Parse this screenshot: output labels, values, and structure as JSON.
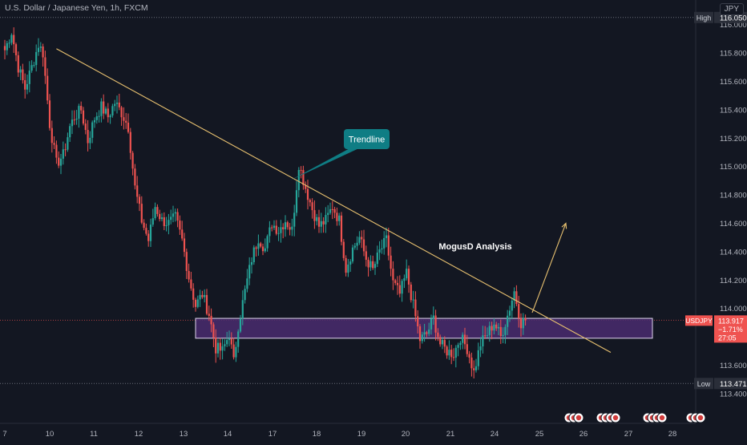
{
  "header": {
    "symbol_title": "U.S. Dollar / Japanese Yen, 1h, FXCM",
    "currency": "JPY"
  },
  "colors": {
    "background": "#131722",
    "up": "#26a69a",
    "down": "#ef5350",
    "trendline": "#e8c170",
    "zone_fill": "#4a2c6e",
    "callout": "#0f7d84",
    "label_bg": "#2a2e39",
    "price_tag": "#ef5350"
  },
  "chart_data": {
    "type": "candlestick",
    "title": "U.S. Dollar / Japanese Yen, 1h, FXCM",
    "ylim": [
      113.3,
      116.15
    ],
    "y_ticks": [
      "116.000",
      "115.800",
      "115.600",
      "115.400",
      "115.200",
      "115.000",
      "114.800",
      "114.600",
      "114.400",
      "114.200",
      "114.000",
      "113.600",
      "113.400"
    ],
    "x_ticks": [
      "7",
      "10",
      "11",
      "12",
      "13",
      "14",
      "17",
      "18",
      "19",
      "20",
      "21",
      "24",
      "25",
      "26",
      "27",
      "28"
    ],
    "high": {
      "label": "High",
      "value": "116.050"
    },
    "low": {
      "label": "Low",
      "value": "113.471"
    },
    "current": {
      "symbol": "USDJPY",
      "price": "113.917",
      "change": "−1.71%",
      "countdown": "27:05"
    },
    "annotations": {
      "trendline_label": "Trendline",
      "analysis_text": "MogusD Analysis",
      "support_zone": [
        113.79,
        113.93
      ]
    },
    "path_points": [
      [
        0,
        115.82
      ],
      [
        3,
        115.95
      ],
      [
        6,
        115.7
      ],
      [
        9,
        115.55
      ],
      [
        12,
        115.7
      ],
      [
        15,
        115.86
      ],
      [
        17,
        115.8
      ],
      [
        20,
        115.3
      ],
      [
        23,
        115.02
      ],
      [
        26,
        115.08
      ],
      [
        29,
        115.28
      ],
      [
        31,
        115.35
      ],
      [
        34,
        115.4
      ],
      [
        37,
        115.18
      ],
      [
        40,
        115.34
      ],
      [
        43,
        115.42
      ],
      [
        46,
        115.35
      ],
      [
        49,
        115.45
      ],
      [
        52,
        115.38
      ],
      [
        55,
        115.28
      ],
      [
        58,
        114.85
      ],
      [
        61,
        114.62
      ],
      [
        64,
        114.48
      ],
      [
        67,
        114.72
      ],
      [
        70,
        114.62
      ],
      [
        73,
        114.6
      ],
      [
        76,
        114.64
      ],
      [
        79,
        114.48
      ],
      [
        82,
        114.22
      ],
      [
        85,
        114.02
      ],
      [
        88,
        114.1
      ],
      [
        91,
        113.96
      ],
      [
        94,
        113.72
      ],
      [
        97,
        113.7
      ],
      [
        100,
        113.82
      ],
      [
        102,
        113.62
      ],
      [
        104,
        113.88
      ],
      [
        107,
        114.12
      ],
      [
        110,
        114.35
      ],
      [
        113,
        114.5
      ],
      [
        116,
        114.42
      ],
      [
        119,
        114.6
      ],
      [
        122,
        114.55
      ],
      [
        125,
        114.62
      ],
      [
        128,
        114.55
      ],
      [
        131,
        115.02
      ],
      [
        134,
        114.85
      ],
      [
        137,
        114.7
      ],
      [
        140,
        114.58
      ],
      [
        143,
        114.62
      ],
      [
        146,
        114.72
      ],
      [
        149,
        114.62
      ],
      [
        152,
        114.28
      ],
      [
        155,
        114.42
      ],
      [
        158,
        114.5
      ],
      [
        161,
        114.35
      ],
      [
        164,
        114.27
      ],
      [
        167,
        114.4
      ],
      [
        170,
        114.48
      ],
      [
        173,
        114.18
      ],
      [
        176,
        114.1
      ],
      [
        179,
        114.25
      ],
      [
        182,
        114.02
      ],
      [
        185,
        113.78
      ],
      [
        188,
        113.82
      ],
      [
        191,
        113.93
      ],
      [
        194,
        113.75
      ],
      [
        197,
        113.7
      ],
      [
        200,
        113.68
      ],
      [
        203,
        113.8
      ],
      [
        206,
        113.72
      ],
      [
        209,
        113.55
      ],
      [
        212,
        113.75
      ],
      [
        215,
        113.82
      ],
      [
        218,
        113.9
      ],
      [
        221,
        113.8
      ],
      [
        224,
        113.95
      ],
      [
        227,
        114.12
      ],
      [
        230,
        113.9
      ],
      [
        232,
        113.92
      ]
    ],
    "timing": {
      "total_bars": 270,
      "x_tick_index": [
        0,
        20,
        39,
        58,
        77,
        96,
        115,
        134,
        153,
        172,
        191,
        210,
        229,
        248,
        267,
        286
      ]
    },
    "trendline_endpoints": [
      [
        23,
        115.83
      ],
      [
        270,
        113.69
      ]
    ],
    "projection_endpoints": [
      [
        235,
        113.97
      ],
      [
        250,
        114.6
      ]
    ]
  }
}
